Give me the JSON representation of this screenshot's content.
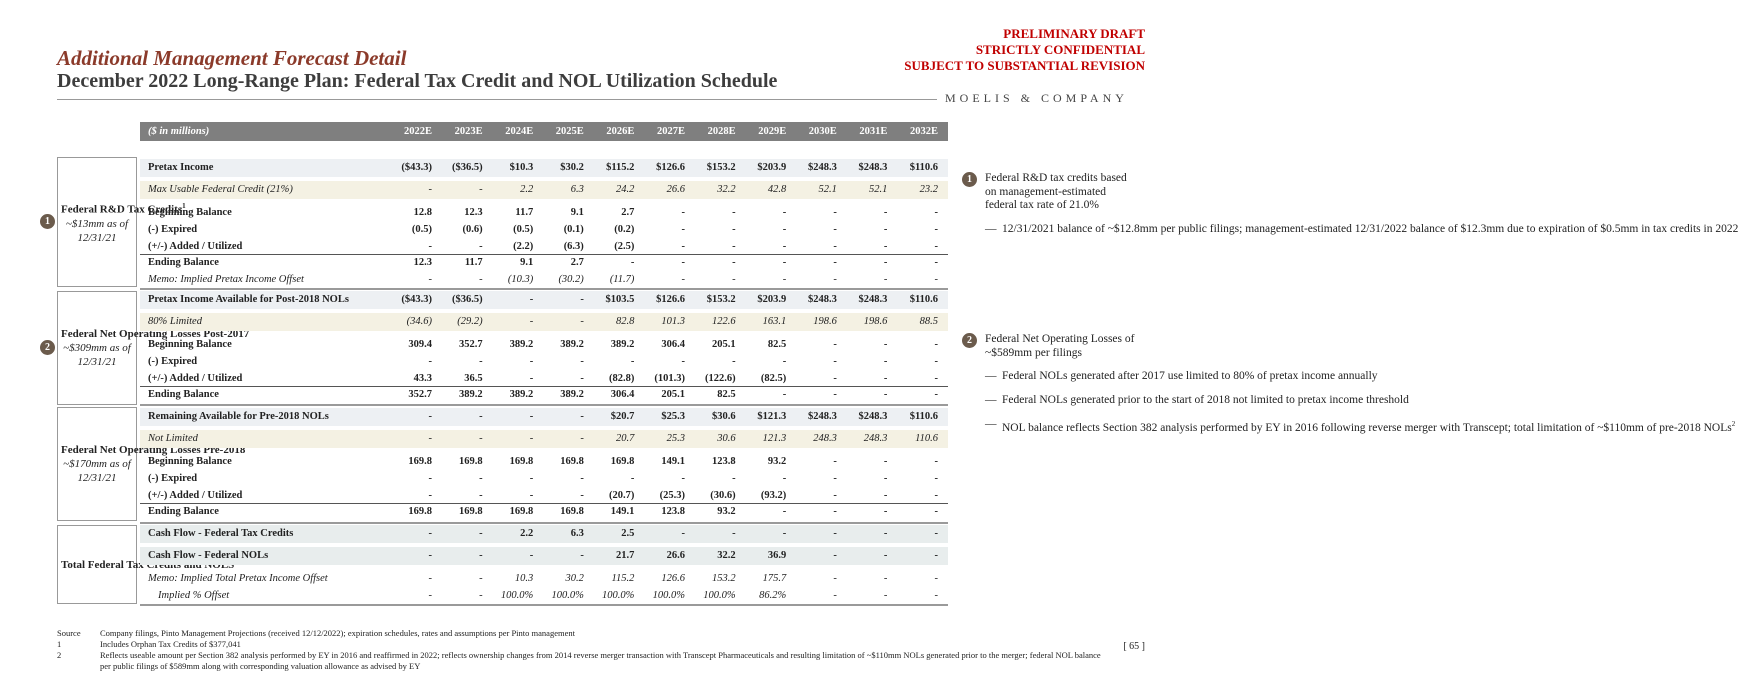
{
  "header": {
    "title": "Additional Management Forecast Detail",
    "subtitle": "December 2022 Long-Range Plan: Federal Tax Credit and NOL Utilization Schedule",
    "draft": [
      "PRELIMINARY DRAFT",
      "STRICTLY CONFIDENTIAL",
      "SUBJECT TO SUBSTANTIAL REVISION"
    ],
    "logo": "MOELIS & COMPANY"
  },
  "table": {
    "units": "($ in millions)",
    "columns": [
      "2022E",
      "2023E",
      "2024E",
      "2025E",
      "2026E",
      "2027E",
      "2028E",
      "2029E",
      "2030E",
      "2031E",
      "2032E"
    ],
    "sections": [
      {
        "badge": "1",
        "label": "Federal R&D Tax Credits",
        "label_note": "1",
        "note": "~$13mm as of 12/31/21",
        "rows": [
          {
            "label": "Pretax Income",
            "values": [
              "($43.3)",
              "($36.5)",
              "$10.3",
              "$30.2",
              "$115.2",
              "$126.6",
              "$153.2",
              "$203.9",
              "$248.3",
              "$248.3",
              "$110.6"
            ]
          },
          {
            "label": "Max Usable Federal Credit (21%)",
            "values": [
              "-",
              "-",
              "2.2",
              "6.3",
              "24.2",
              "26.6",
              "32.2",
              "42.8",
              "52.1",
              "52.1",
              "23.2"
            ]
          },
          {
            "label": "Beginning Balance",
            "values": [
              "12.8",
              "12.3",
              "11.7",
              "9.1",
              "2.7",
              "-",
              "-",
              "-",
              "-",
              "-",
              "-"
            ]
          },
          {
            "label": "(-) Expired",
            "values": [
              "(0.5)",
              "(0.6)",
              "(0.5)",
              "(0.1)",
              "(0.2)",
              "-",
              "-",
              "-",
              "-",
              "-",
              "-"
            ]
          },
          {
            "label": "(+/-) Added / Utilized",
            "values": [
              "-",
              "-",
              "(2.2)",
              "(6.3)",
              "(2.5)",
              "-",
              "-",
              "-",
              "-",
              "-",
              "-"
            ]
          },
          {
            "label": "Ending Balance",
            "values": [
              "12.3",
              "11.7",
              "9.1",
              "2.7",
              "-",
              "-",
              "-",
              "-",
              "-",
              "-",
              "-"
            ]
          },
          {
            "label": "Memo: Implied Pretax Income Offset",
            "values": [
              "-",
              "-",
              "(10.3)",
              "(30.2)",
              "(11.7)",
              "-",
              "-",
              "-",
              "-",
              "-",
              "-"
            ]
          }
        ]
      },
      {
        "badge": "2",
        "label": "Federal Net Operating Losses Post-2017",
        "note": "~$309mm as of 12/31/21",
        "rows": [
          {
            "label": "Pretax Income Available for Post-2018 NOLs",
            "values": [
              "($43.3)",
              "($36.5)",
              "-",
              "-",
              "$103.5",
              "$126.6",
              "$153.2",
              "$203.9",
              "$248.3",
              "$248.3",
              "$110.6"
            ]
          },
          {
            "label": "80% Limited",
            "values": [
              "(34.6)",
              "(29.2)",
              "-",
              "-",
              "82.8",
              "101.3",
              "122.6",
              "163.1",
              "198.6",
              "198.6",
              "88.5"
            ]
          },
          {
            "label": "Beginning Balance",
            "values": [
              "309.4",
              "352.7",
              "389.2",
              "389.2",
              "389.2",
              "306.4",
              "205.1",
              "82.5",
              "-",
              "-",
              "-"
            ]
          },
          {
            "label": "(-) Expired",
            "values": [
              "-",
              "-",
              "-",
              "-",
              "-",
              "-",
              "-",
              "-",
              "-",
              "-",
              "-"
            ]
          },
          {
            "label": "(+/-) Added / Utilized",
            "values": [
              "43.3",
              "36.5",
              "-",
              "-",
              "(82.8)",
              "(101.3)",
              "(122.6)",
              "(82.5)",
              "-",
              "-",
              "-"
            ]
          },
          {
            "label": "Ending Balance",
            "values": [
              "352.7",
              "389.2",
              "389.2",
              "389.2",
              "306.4",
              "205.1",
              "82.5",
              "-",
              "-",
              "-",
              "-"
            ]
          }
        ]
      },
      {
        "label": "Federal Net Operating Losses Pre-2018",
        "note": "~$170mm as of 12/31/21",
        "rows": [
          {
            "label": "Remaining Available for Pre-2018 NOLs",
            "values": [
              "-",
              "-",
              "-",
              "-",
              "$20.7",
              "$25.3",
              "$30.6",
              "$121.3",
              "$248.3",
              "$248.3",
              "$110.6"
            ]
          },
          {
            "label": "Not Limited",
            "values": [
              "-",
              "-",
              "-",
              "-",
              "20.7",
              "25.3",
              "30.6",
              "121.3",
              "248.3",
              "248.3",
              "110.6"
            ]
          },
          {
            "label": "Beginning Balance",
            "values": [
              "169.8",
              "169.8",
              "169.8",
              "169.8",
              "169.8",
              "149.1",
              "123.8",
              "93.2",
              "-",
              "-",
              "-"
            ]
          },
          {
            "label": "(-) Expired",
            "values": [
              "-",
              "-",
              "-",
              "-",
              "-",
              "-",
              "-",
              "-",
              "-",
              "-",
              "-"
            ]
          },
          {
            "label": "(+/-) Added / Utilized",
            "values": [
              "-",
              "-",
              "-",
              "-",
              "(20.7)",
              "(25.3)",
              "(30.6)",
              "(93.2)",
              "-",
              "-",
              "-"
            ]
          },
          {
            "label": "Ending Balance",
            "values": [
              "169.8",
              "169.8",
              "169.8",
              "169.8",
              "149.1",
              "123.8",
              "93.2",
              "-",
              "-",
              "-",
              "-"
            ]
          }
        ]
      },
      {
        "label": "Total Federal Tax Credits and NOLS",
        "rows": [
          {
            "label": "Cash Flow - Federal Tax Credits",
            "values": [
              "-",
              "-",
              "2.2",
              "6.3",
              "2.5",
              "-",
              "-",
              "-",
              "-",
              "-",
              "-"
            ]
          },
          {
            "label": "Cash Flow - Federal NOLs",
            "values": [
              "-",
              "-",
              "-",
              "-",
              "21.7",
              "26.6",
              "32.2",
              "36.9",
              "-",
              "-",
              "-"
            ]
          },
          {
            "label": "Memo: Implied Total Pretax Income Offset",
            "values": [
              "-",
              "-",
              "10.3",
              "30.2",
              "115.2",
              "126.6",
              "153.2",
              "175.7",
              "-",
              "-",
              "-"
            ]
          },
          {
            "label": "Implied % Offset",
            "values": [
              "-",
              "-",
              "100.0%",
              "100.0%",
              "100.0%",
              "100.0%",
              "100.0%",
              "86.2%",
              "-",
              "-",
              "-"
            ]
          }
        ]
      }
    ]
  },
  "sidebar": [
    {
      "badge": "1",
      "text": "Federal R&D tax credits based on management-estimated federal tax rate of 21.0%",
      "bullets": [
        "12/31/2021 balance of ~$12.8mm per public filings; management-estimated 12/31/2022 balance of $12.3mm due to expiration of $0.5mm in tax credits in 2022"
      ]
    },
    {
      "badge": "2",
      "text": "Federal Net Operating Losses of ~$589mm per filings",
      "bullets": [
        "Federal NOLs generated after 2017 use limited to 80% of pretax income annually",
        "Federal NOLs generated prior to the start of 2018 not limited to pretax income threshold",
        "NOL balance reflects Section 382 analysis performed by EY in 2016 following reverse merger with Transcept; total limitation of ~$110mm of pre-2018 NOLs"
      ],
      "bullet_note": "2"
    }
  ],
  "footnotes": [
    {
      "mark": "Source",
      "text": "Company filings, Pinto Management Projections (received 12/12/2022); expiration schedules, rates and assumptions per Pinto management"
    },
    {
      "mark": "1",
      "text": "Includes Orphan Tax Credits of $377,041"
    },
    {
      "mark": "2",
      "text": "Reflects useable amount per Section 382 analysis performed by EY in 2016 and reaffirmed in 2022; reflects ownership changes from 2014 reverse merger transaction with Transcept Pharmaceuticals and resulting limitation of ~$110mm NOLs generated prior to the merger; federal NOL balance per public filings of $589mm along with corresponding valuation allowance as advised by EY"
    }
  ],
  "page": "[ 65 ]"
}
